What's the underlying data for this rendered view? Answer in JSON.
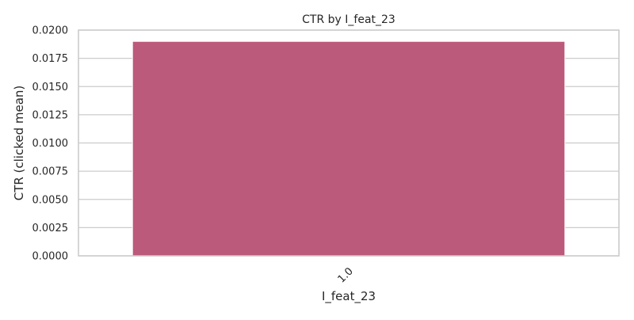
{
  "chart_data": {
    "type": "bar",
    "title": "CTR by I_feat_23",
    "xlabel": "I_feat_23",
    "ylabel": "CTR (clicked mean)",
    "categories": [
      "1.0"
    ],
    "values": [
      0.019
    ],
    "ylim": [
      0,
      0.02
    ],
    "yticks": [
      "0.0000",
      "0.0025",
      "0.0050",
      "0.0075",
      "0.0100",
      "0.0125",
      "0.0150",
      "0.0175",
      "0.0200"
    ],
    "grid": "horizontal",
    "bar_color": "#bc5a7c",
    "grid_color": "#cccccc",
    "frame_color": "#cccccc"
  }
}
